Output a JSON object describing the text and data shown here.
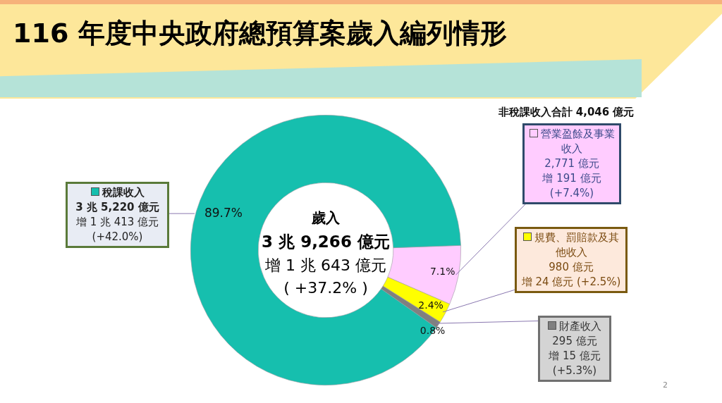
{
  "chart_data": {
    "type": "donut",
    "title": "116 年度中央政府總預算案歲入編列情形",
    "categories": [
      "營業盈餘及事業收入",
      "規費、罰賠款及其他收入",
      "財產收入",
      "稅課收入"
    ],
    "values": [
      7.1,
      2.4,
      0.8,
      89.7
    ],
    "colors": [
      "#ffccff",
      "#ffff00",
      "#808080",
      "#16bfae"
    ],
    "value_labels": [
      "7.1%",
      "2.4%",
      "0.8%",
      "89.7%"
    ],
    "legend": "right",
    "annotations": [
      "歲入",
      "3 兆 9,266 億元",
      "增 1 兆 643 億元",
      "( +37.2% )",
      "非稅課收入合計 4,046 億元",
      {
        "text": "2,771 億元",
        "x": "營業盈餘及事業收入"
      },
      {
        "text": "增 191 億元",
        "x": "營業盈餘及事業收入"
      },
      {
        "text": "(+7.4%)",
        "x": "營業盈餘及事業收入"
      },
      {
        "text": "980 億元",
        "x": "規費、罰賠款及其他收入"
      },
      {
        "text": "增 24 億元 (+2.5%)",
        "x": "規費、罰賠款及其他收入"
      },
      {
        "text": "295 億元",
        "x": "財產收入"
      },
      {
        "text": "增 15 億元",
        "x": "財產收入"
      },
      {
        "text": "(+5.3%)",
        "x": "財產收入"
      },
      {
        "text": "3 兆 5,220 億元",
        "x": "稅課收入"
      },
      {
        "text": "增 1 兆 413 億元",
        "x": "稅課收入"
      },
      {
        "text": "(+42.0%)",
        "x": "稅課收入"
      },
      "2"
    ]
  }
}
